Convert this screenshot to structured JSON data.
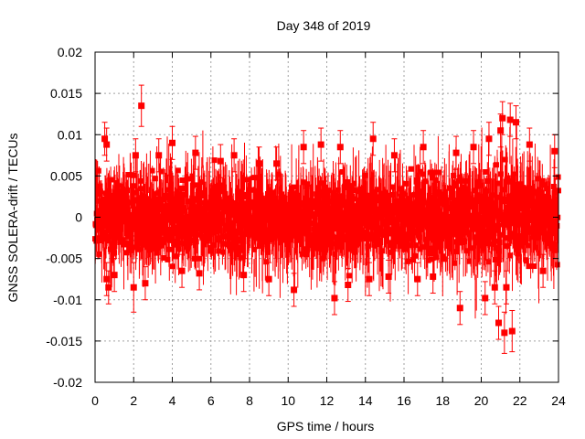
{
  "chart_data": {
    "type": "scatter",
    "title": "Day 348 of 2019",
    "xlabel": "GPS time / hours",
    "ylabel": "GNSS SOLERA-drift / TECUs",
    "xlim": [
      0,
      24
    ],
    "ylim": [
      -0.02,
      0.02
    ],
    "x_ticks": [
      0,
      2,
      4,
      6,
      8,
      10,
      12,
      14,
      16,
      18,
      20,
      22,
      24
    ],
    "x_tick_labels": [
      "0",
      "2",
      "4",
      "6",
      "8",
      "10",
      "12",
      "14",
      "16",
      "18",
      "20",
      "22",
      "24"
    ],
    "y_ticks": [
      -0.02,
      -0.015,
      -0.01,
      -0.005,
      0,
      0.005,
      0.01,
      0.015,
      0.02
    ],
    "y_tick_labels": [
      "-0.02",
      "-0.015",
      "-0.01",
      "-0.005",
      "0",
      "0.005",
      "0.01",
      "0.015",
      "0.02"
    ],
    "grid": true,
    "series": [
      {
        "name": "SOLERA-drift",
        "color": "#ff0000",
        "marker": "square",
        "error_bars": true,
        "error_mean": 0.0025,
        "dense_band": {
          "x_step_hours": 0.01,
          "typical_spread": 0.0026,
          "typical_error": 0.0025
        },
        "points": [
          {
            "x": 0.5,
            "y": 0.0095,
            "err": 0.002
          },
          {
            "x": 0.6,
            "y": 0.0088,
            "err": 0.002
          },
          {
            "x": 0.7,
            "y": -0.0085,
            "err": 0.002
          },
          {
            "x": 0.6,
            "y": -0.0075,
            "err": 0.002
          },
          {
            "x": 1.0,
            "y": -0.007,
            "err": 0.002
          },
          {
            "x": 2.0,
            "y": -0.0085,
            "err": 0.003
          },
          {
            "x": 2.1,
            "y": 0.0075,
            "err": 0.002
          },
          {
            "x": 2.4,
            "y": 0.0135,
            "err": 0.0025
          },
          {
            "x": 2.6,
            "y": -0.008,
            "err": 0.002
          },
          {
            "x": 3.3,
            "y": 0.0075,
            "err": 0.002
          },
          {
            "x": 4.0,
            "y": 0.009,
            "err": 0.002
          },
          {
            "x": 4.5,
            "y": -0.0065,
            "err": 0.002
          },
          {
            "x": 5.2,
            "y": 0.0078,
            "err": 0.002
          },
          {
            "x": 5.4,
            "y": -0.0068,
            "err": 0.002
          },
          {
            "x": 6.5,
            "y": 0.0068,
            "err": 0.002
          },
          {
            "x": 7.2,
            "y": 0.0075,
            "err": 0.002
          },
          {
            "x": 7.7,
            "y": -0.007,
            "err": 0.002
          },
          {
            "x": 8.5,
            "y": 0.0065,
            "err": 0.002
          },
          {
            "x": 9.0,
            "y": -0.0075,
            "err": 0.002
          },
          {
            "x": 9.4,
            "y": 0.0065,
            "err": 0.002
          },
          {
            "x": 10.3,
            "y": -0.0088,
            "err": 0.002
          },
          {
            "x": 10.8,
            "y": 0.0085,
            "err": 0.002
          },
          {
            "x": 11.7,
            "y": 0.0088,
            "err": 0.002
          },
          {
            "x": 12.4,
            "y": -0.0098,
            "err": 0.002
          },
          {
            "x": 12.7,
            "y": 0.0085,
            "err": 0.002
          },
          {
            "x": 13.1,
            "y": -0.0082,
            "err": 0.002
          },
          {
            "x": 14.2,
            "y": -0.0075,
            "err": 0.002
          },
          {
            "x": 14.4,
            "y": 0.0095,
            "err": 0.002
          },
          {
            "x": 15.2,
            "y": -0.0072,
            "err": 0.002
          },
          {
            "x": 15.5,
            "y": 0.0075,
            "err": 0.002
          },
          {
            "x": 16.7,
            "y": -0.0075,
            "err": 0.002
          },
          {
            "x": 17.0,
            "y": 0.0085,
            "err": 0.002
          },
          {
            "x": 17.5,
            "y": -0.0072,
            "err": 0.002
          },
          {
            "x": 18.7,
            "y": 0.0078,
            "err": 0.002
          },
          {
            "x": 18.9,
            "y": -0.011,
            "err": 0.002
          },
          {
            "x": 19.6,
            "y": 0.0085,
            "err": 0.002
          },
          {
            "x": 20.2,
            "y": -0.0098,
            "err": 0.002
          },
          {
            "x": 20.4,
            "y": 0.0095,
            "err": 0.002
          },
          {
            "x": 20.7,
            "y": -0.0085,
            "err": 0.002
          },
          {
            "x": 20.9,
            "y": -0.0128,
            "err": 0.002
          },
          {
            "x": 21.0,
            "y": 0.0105,
            "err": 0.002
          },
          {
            "x": 21.1,
            "y": 0.012,
            "err": 0.002
          },
          {
            "x": 21.2,
            "y": -0.014,
            "err": 0.0025
          },
          {
            "x": 21.3,
            "y": -0.0085,
            "err": 0.002
          },
          {
            "x": 21.5,
            "y": 0.0118,
            "err": 0.002
          },
          {
            "x": 21.6,
            "y": -0.0138,
            "err": 0.0025
          },
          {
            "x": 21.8,
            "y": 0.0115,
            "err": 0.002
          },
          {
            "x": 22.5,
            "y": 0.0088,
            "err": 0.002
          },
          {
            "x": 23.2,
            "y": -0.0065,
            "err": 0.002
          },
          {
            "x": 23.8,
            "y": 0.008,
            "err": 0.002
          }
        ]
      }
    ]
  }
}
